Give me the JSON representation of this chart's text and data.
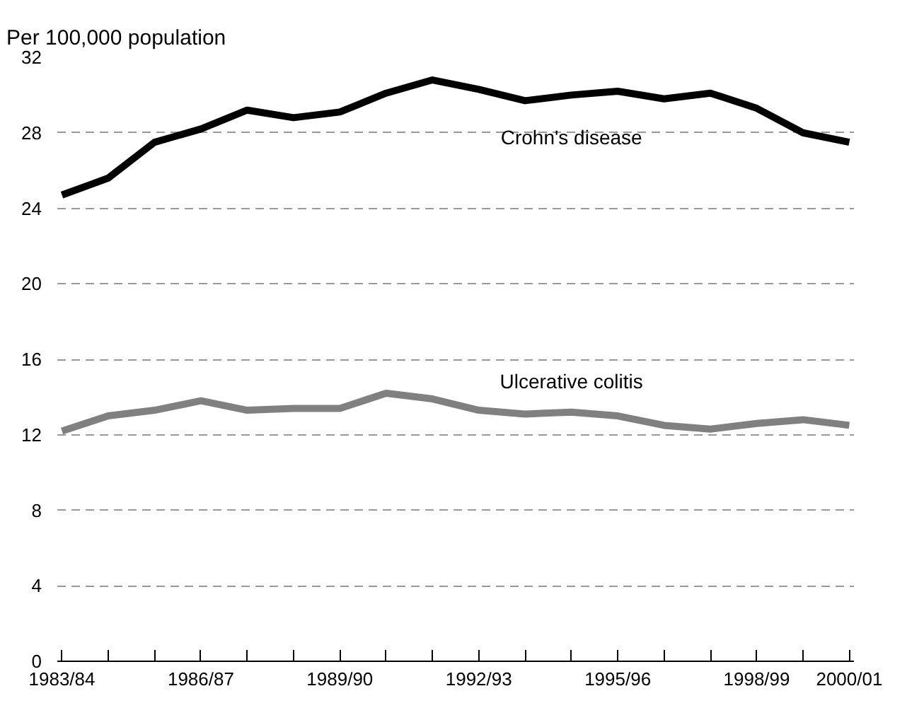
{
  "chart_data": {
    "type": "line",
    "ylabel": "Per 100,000 population",
    "categories": [
      "1983/84",
      null,
      null,
      "1986/87",
      null,
      null,
      "1989/90",
      null,
      null,
      "1992/93",
      null,
      null,
      "1995/96",
      null,
      null,
      "1998/99",
      null,
      "2000/01"
    ],
    "series": [
      {
        "name": "Crohn's disease",
        "color": "#000000",
        "values": [
          24.7,
          25.6,
          27.5,
          28.2,
          29.2,
          28.8,
          29.1,
          30.1,
          30.8,
          30.3,
          29.7,
          30.0,
          30.2,
          29.8,
          30.1,
          29.3,
          28.0,
          27.5
        ]
      },
      {
        "name": "Ulcerative colitis",
        "color": "#808080",
        "values": [
          12.2,
          13.0,
          13.3,
          13.8,
          13.3,
          13.4,
          13.4,
          14.2,
          13.9,
          13.3,
          13.1,
          13.2,
          13.0,
          12.5,
          12.3,
          12.6,
          12.8,
          12.5
        ]
      }
    ],
    "ylim": [
      0,
      32
    ],
    "yticks": [
      0,
      4,
      8,
      12,
      16,
      20,
      24,
      28,
      32
    ],
    "grid": "y",
    "line_style": "solid",
    "marker": "none"
  }
}
